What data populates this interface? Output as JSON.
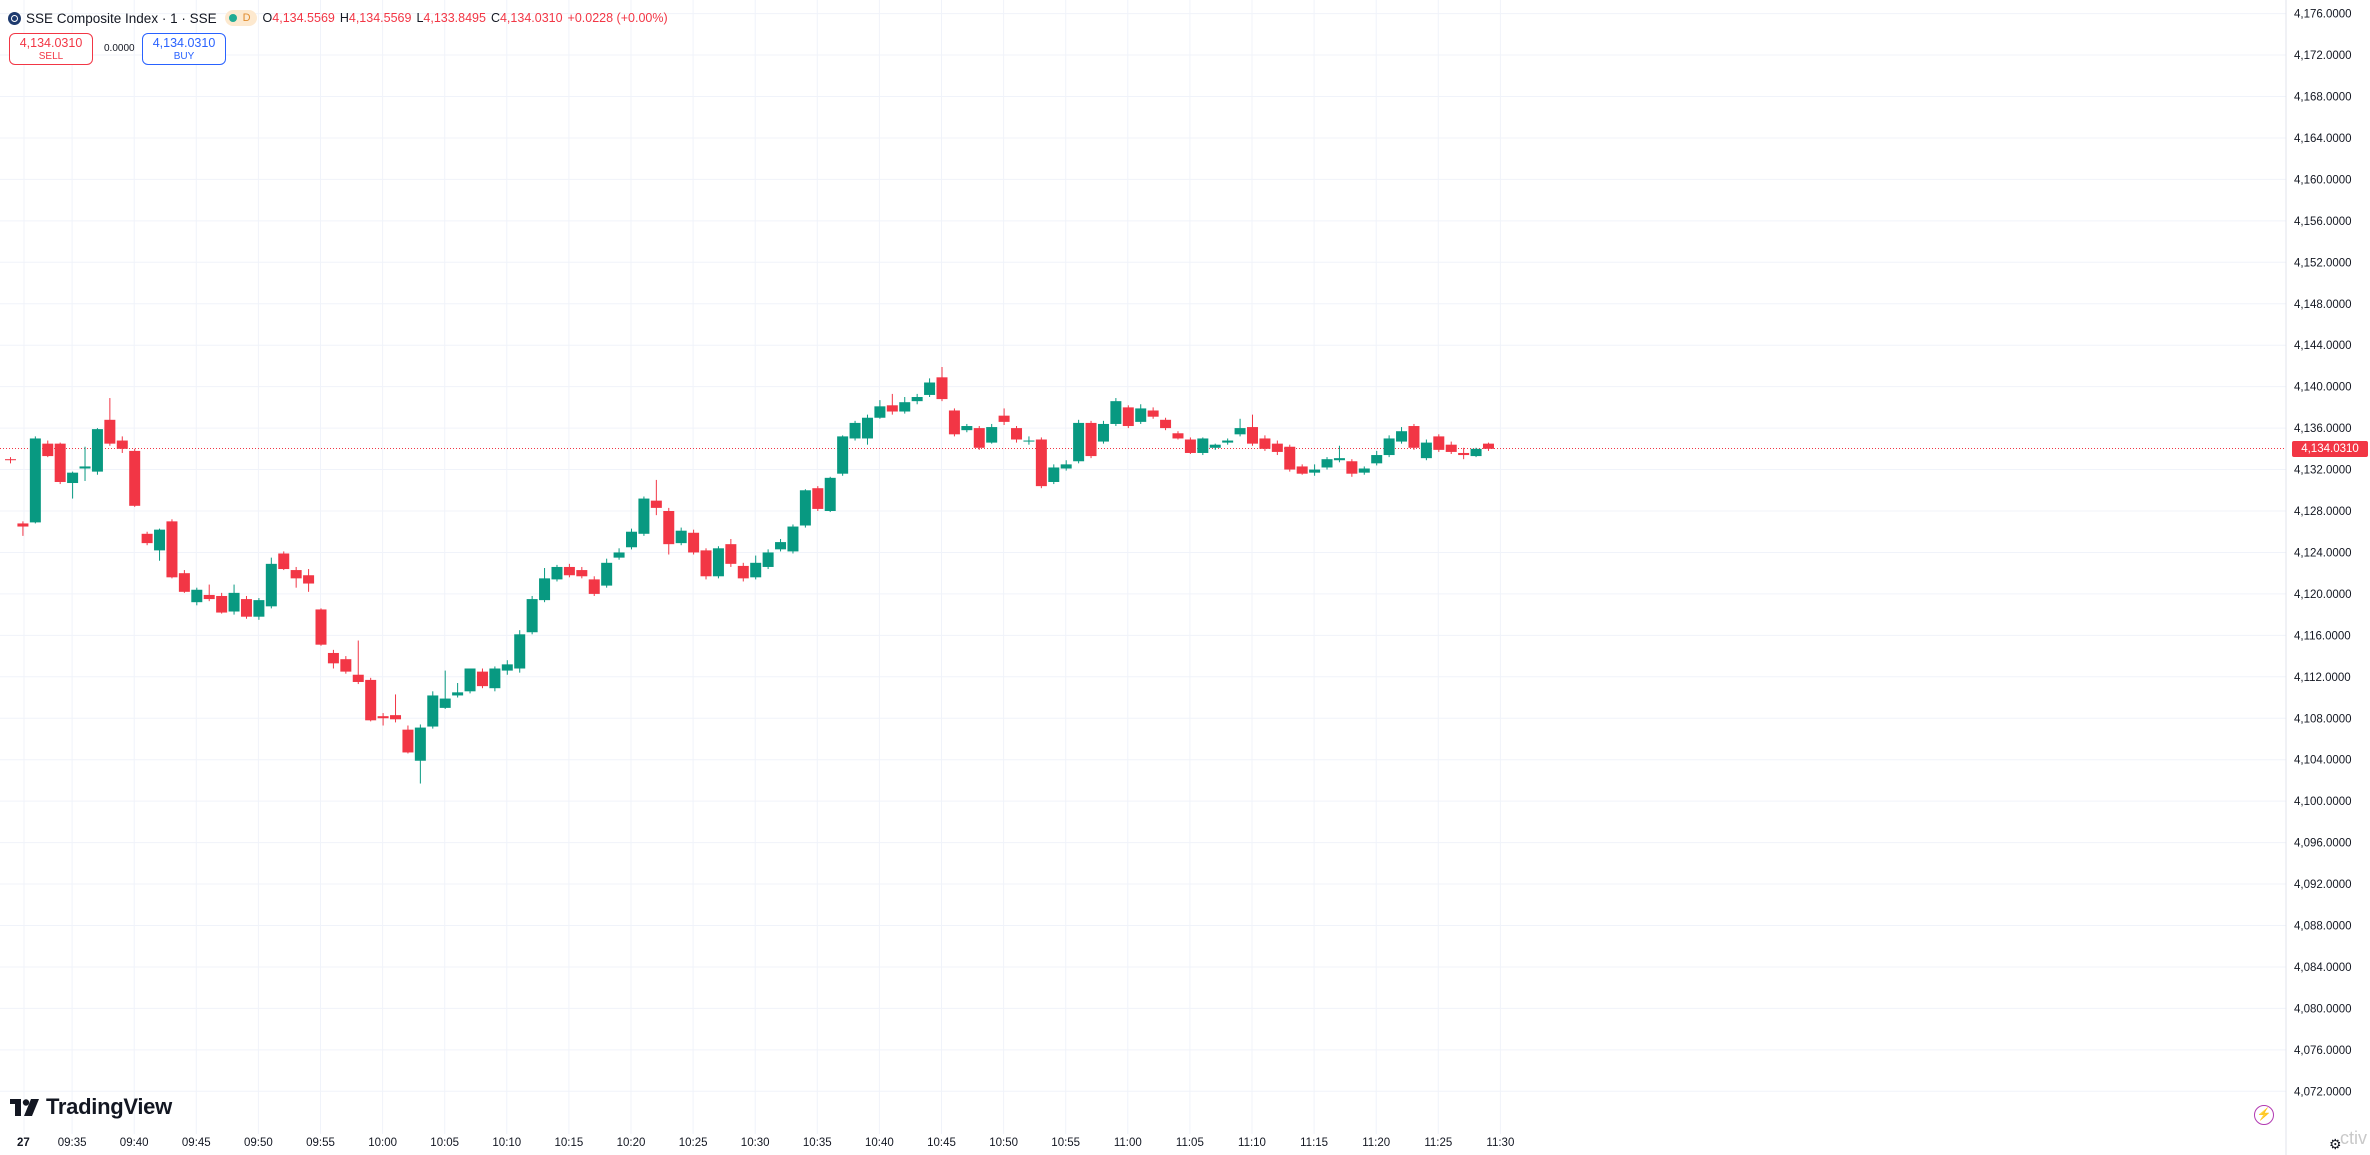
{
  "legend": {
    "title": "SSE Composite Index · 1 · SSE",
    "badge": "D",
    "o_key": "O",
    "o_val": "4,134.5569",
    "h_key": "H",
    "h_val": "4,134.5569",
    "l_key": "L",
    "l_val": "4,133.8495",
    "c_key": "C",
    "c_val": "4,134.0310",
    "change": "+0.0228 (+0.00%)"
  },
  "trade": {
    "sell_price": "4,134.0310",
    "sell_label": "SELL",
    "spread": "0.0000",
    "buy_price": "4,134.0310",
    "buy_label": "BUY"
  },
  "branding": {
    "logo_text": "TradingView"
  },
  "watermark": "ctiv",
  "last_price_label": "4,134.0310",
  "colors": {
    "up": "#089981",
    "down": "#f23645",
    "grid": "#f0f3fa",
    "axis_text": "#131722",
    "price_line": "#f23645"
  },
  "icons": {
    "symbol": "symbol-logo-icon",
    "logo": "tradingview-logo-icon",
    "bolt": "lightning-icon",
    "settings": "gear-icon"
  },
  "chart_data": {
    "type": "candlestick",
    "title": "SSE Composite Index · 1 · SSE",
    "interval": "1",
    "ylim": [
      4070,
      4177
    ],
    "y_ticks": [
      "4,072.0000",
      "4,076.0000",
      "4,080.0000",
      "4,084.0000",
      "4,088.0000",
      "4,092.0000",
      "4,096.0000",
      "4,100.0000",
      "4,104.0000",
      "4,108.0000",
      "4,112.0000",
      "4,116.0000",
      "4,120.0000",
      "4,124.0000",
      "4,128.0000",
      "4,132.0000",
      "4,136.0000",
      "4,140.0000",
      "4,144.0000",
      "4,148.0000",
      "4,152.0000",
      "4,156.0000",
      "4,160.0000",
      "4,164.0000",
      "4,168.0000",
      "4,172.0000",
      "4,176.0000"
    ],
    "x_ticks": [
      "27",
      "09:35",
      "09:40",
      "09:45",
      "09:50",
      "09:55",
      "10:00",
      "10:05",
      "10:10",
      "10:15",
      "10:20",
      "10:25",
      "10:30",
      "10:35",
      "10:40",
      "10:45",
      "10:50",
      "10:55",
      "11:00",
      "11:05",
      "11:10",
      "11:15",
      "11:20",
      "11:25",
      "11:30"
    ],
    "last_price": 4134.031,
    "candles": [
      {
        "t": "09:30",
        "o": 4133.0,
        "h": 4133.2,
        "l": 4132.6,
        "c": 4132.9
      },
      {
        "t": "09:31",
        "o": 4126.8,
        "h": 4127.0,
        "l": 4125.6,
        "c": 4126.5
      },
      {
        "t": "09:32",
        "o": 4126.9,
        "h": 4135.2,
        "l": 4126.8,
        "c": 4135.0
      },
      {
        "t": "09:33",
        "o": 4134.5,
        "h": 4134.8,
        "l": 4133.2,
        "c": 4133.3
      },
      {
        "t": "09:34",
        "o": 4134.5,
        "h": 4134.6,
        "l": 4130.6,
        "c": 4130.8
      },
      {
        "t": "09:35",
        "o": 4130.7,
        "h": 4131.8,
        "l": 4129.2,
        "c": 4131.7
      },
      {
        "t": "09:36",
        "o": 4132.1,
        "h": 4134.2,
        "l": 4130.9,
        "c": 4132.3
      },
      {
        "t": "09:37",
        "o": 4131.8,
        "h": 4136.0,
        "l": 4131.5,
        "c": 4135.9
      },
      {
        "t": "09:38",
        "o": 4136.8,
        "h": 4138.9,
        "l": 4134.3,
        "c": 4134.5
      },
      {
        "t": "09:39",
        "o": 4134.8,
        "h": 4135.2,
        "l": 4133.6,
        "c": 4134.0
      },
      {
        "t": "09:40",
        "o": 4133.8,
        "h": 4134.0,
        "l": 4128.4,
        "c": 4128.5
      },
      {
        "t": "09:41",
        "o": 4125.8,
        "h": 4126.0,
        "l": 4124.7,
        "c": 4124.9
      },
      {
        "t": "09:42",
        "o": 4124.2,
        "h": 4126.3,
        "l": 4123.2,
        "c": 4126.2
      },
      {
        "t": "09:43",
        "o": 4127.0,
        "h": 4127.2,
        "l": 4121.5,
        "c": 4121.6
      },
      {
        "t": "09:44",
        "o": 4122.0,
        "h": 4122.3,
        "l": 4120.1,
        "c": 4120.2
      },
      {
        "t": "09:45",
        "o": 4119.2,
        "h": 4120.6,
        "l": 4118.9,
        "c": 4120.4
      },
      {
        "t": "09:46",
        "o": 4119.9,
        "h": 4120.9,
        "l": 4119.3,
        "c": 4119.5
      },
      {
        "t": "09:47",
        "o": 4119.8,
        "h": 4120.1,
        "l": 4118.1,
        "c": 4118.2
      },
      {
        "t": "09:48",
        "o": 4118.3,
        "h": 4120.9,
        "l": 4118.0,
        "c": 4120.1
      },
      {
        "t": "09:49",
        "o": 4119.5,
        "h": 4119.8,
        "l": 4117.6,
        "c": 4117.8
      },
      {
        "t": "09:50",
        "o": 4117.8,
        "h": 4119.6,
        "l": 4117.5,
        "c": 4119.4
      },
      {
        "t": "09:51",
        "o": 4118.8,
        "h": 4123.5,
        "l": 4118.6,
        "c": 4122.9
      },
      {
        "t": "09:52",
        "o": 4123.9,
        "h": 4124.1,
        "l": 4122.3,
        "c": 4122.4
      },
      {
        "t": "09:53",
        "o": 4122.3,
        "h": 4122.6,
        "l": 4120.6,
        "c": 4121.5
      },
      {
        "t": "09:54",
        "o": 4121.8,
        "h": 4122.4,
        "l": 4120.2,
        "c": 4121.0
      },
      {
        "t": "09:55",
        "o": 4118.5,
        "h": 4118.6,
        "l": 4115.0,
        "c": 4115.1
      },
      {
        "t": "09:56",
        "o": 4114.3,
        "h": 4114.6,
        "l": 4112.8,
        "c": 4113.3
      },
      {
        "t": "09:57",
        "o": 4113.7,
        "h": 4114.0,
        "l": 4112.3,
        "c": 4112.5
      },
      {
        "t": "09:58",
        "o": 4112.2,
        "h": 4115.5,
        "l": 4111.3,
        "c": 4111.5
      },
      {
        "t": "09:59",
        "o": 4111.7,
        "h": 4111.9,
        "l": 4107.7,
        "c": 4107.8
      },
      {
        "t": "10:00",
        "o": 4108.2,
        "h": 4108.5,
        "l": 4107.3,
        "c": 4108.0
      },
      {
        "t": "10:01",
        "o": 4108.3,
        "h": 4110.3,
        "l": 4107.6,
        "c": 4107.9
      },
      {
        "t": "10:02",
        "o": 4106.9,
        "h": 4107.3,
        "l": 4104.6,
        "c": 4104.7
      },
      {
        "t": "10:03",
        "o": 4103.9,
        "h": 4107.4,
        "l": 4101.7,
        "c": 4107.1
      },
      {
        "t": "10:04",
        "o": 4107.2,
        "h": 4110.6,
        "l": 4107.0,
        "c": 4110.2
      },
      {
        "t": "10:05",
        "o": 4109.0,
        "h": 4112.6,
        "l": 4108.9,
        "c": 4109.9
      },
      {
        "t": "10:06",
        "o": 4110.2,
        "h": 4111.4,
        "l": 4110.0,
        "c": 4110.5
      },
      {
        "t": "10:07",
        "o": 4110.6,
        "h": 4112.8,
        "l": 4110.4,
        "c": 4112.8
      },
      {
        "t": "10:08",
        "o": 4112.5,
        "h": 4112.8,
        "l": 4110.9,
        "c": 4111.1
      },
      {
        "t": "10:09",
        "o": 4110.9,
        "h": 4113.0,
        "l": 4110.6,
        "c": 4112.8
      },
      {
        "t": "10:10",
        "o": 4112.6,
        "h": 4113.6,
        "l": 4112.2,
        "c": 4113.2
      },
      {
        "t": "10:11",
        "o": 4112.8,
        "h": 4116.5,
        "l": 4112.4,
        "c": 4116.1
      },
      {
        "t": "10:12",
        "o": 4116.3,
        "h": 4119.8,
        "l": 4116.1,
        "c": 4119.5
      },
      {
        "t": "10:13",
        "o": 4119.4,
        "h": 4122.5,
        "l": 4119.2,
        "c": 4121.5
      },
      {
        "t": "10:14",
        "o": 4121.4,
        "h": 4122.8,
        "l": 4121.2,
        "c": 4122.6
      },
      {
        "t": "10:15",
        "o": 4122.6,
        "h": 4122.9,
        "l": 4121.6,
        "c": 4121.8
      },
      {
        "t": "10:16",
        "o": 4122.3,
        "h": 4122.6,
        "l": 4121.5,
        "c": 4121.7
      },
      {
        "t": "10:17",
        "o": 4121.4,
        "h": 4121.7,
        "l": 4119.8,
        "c": 4120.0
      },
      {
        "t": "10:18",
        "o": 4120.8,
        "h": 4123.4,
        "l": 4120.6,
        "c": 4123.0
      },
      {
        "t": "10:19",
        "o": 4123.5,
        "h": 4124.4,
        "l": 4123.3,
        "c": 4124.0
      },
      {
        "t": "10:20",
        "o": 4124.5,
        "h": 4126.3,
        "l": 4124.3,
        "c": 4126.0
      },
      {
        "t": "10:21",
        "o": 4125.8,
        "h": 4129.4,
        "l": 4125.6,
        "c": 4129.2
      },
      {
        "t": "10:22",
        "o": 4129.0,
        "h": 4131.0,
        "l": 4127.6,
        "c": 4128.3
      },
      {
        "t": "10:23",
        "o": 4128.0,
        "h": 4128.3,
        "l": 4123.8,
        "c": 4124.8
      },
      {
        "t": "10:24",
        "o": 4124.9,
        "h": 4126.4,
        "l": 4124.7,
        "c": 4126.1
      },
      {
        "t": "10:25",
        "o": 4125.9,
        "h": 4126.2,
        "l": 4123.8,
        "c": 4124.0
      },
      {
        "t": "10:26",
        "o": 4124.2,
        "h": 4124.4,
        "l": 4121.4,
        "c": 4121.7
      },
      {
        "t": "10:27",
        "o": 4121.7,
        "h": 4124.6,
        "l": 4121.5,
        "c": 4124.4
      },
      {
        "t": "10:28",
        "o": 4124.8,
        "h": 4125.3,
        "l": 4122.6,
        "c": 4122.9
      },
      {
        "t": "10:29",
        "o": 4122.7,
        "h": 4123.0,
        "l": 4121.2,
        "c": 4121.5
      },
      {
        "t": "10:30",
        "o": 4121.6,
        "h": 4123.7,
        "l": 4121.4,
        "c": 4123.0
      },
      {
        "t": "10:31",
        "o": 4122.6,
        "h": 4124.3,
        "l": 4122.4,
        "c": 4124.0
      },
      {
        "t": "10:32",
        "o": 4124.3,
        "h": 4125.3,
        "l": 4124.1,
        "c": 4125.0
      },
      {
        "t": "10:33",
        "o": 4124.1,
        "h": 4126.7,
        "l": 4123.9,
        "c": 4126.5
      },
      {
        "t": "10:34",
        "o": 4126.6,
        "h": 4130.1,
        "l": 4126.4,
        "c": 4130.0
      },
      {
        "t": "10:35",
        "o": 4130.2,
        "h": 4130.4,
        "l": 4128.0,
        "c": 4128.2
      },
      {
        "t": "10:36",
        "o": 4128.0,
        "h": 4131.3,
        "l": 4127.9,
        "c": 4131.2
      },
      {
        "t": "10:37",
        "o": 4131.6,
        "h": 4135.3,
        "l": 4131.4,
        "c": 4135.2
      },
      {
        "t": "10:38",
        "o": 4135.0,
        "h": 4136.7,
        "l": 4134.8,
        "c": 4136.5
      },
      {
        "t": "10:39",
        "o": 4135.0,
        "h": 4137.3,
        "l": 4134.4,
        "c": 4137.0
      },
      {
        "t": "10:40",
        "o": 4137.0,
        "h": 4138.7,
        "l": 4136.9,
        "c": 4138.1
      },
      {
        "t": "10:41",
        "o": 4138.2,
        "h": 4139.3,
        "l": 4137.3,
        "c": 4137.6
      },
      {
        "t": "10:42",
        "o": 4137.6,
        "h": 4139.0,
        "l": 4137.4,
        "c": 4138.5
      },
      {
        "t": "10:43",
        "o": 4138.6,
        "h": 4139.3,
        "l": 4138.3,
        "c": 4139.0
      },
      {
        "t": "10:44",
        "o": 4139.2,
        "h": 4140.8,
        "l": 4139.0,
        "c": 4140.4
      },
      {
        "t": "10:45",
        "o": 4140.9,
        "h": 4141.9,
        "l": 4138.6,
        "c": 4138.8
      },
      {
        "t": "10:46",
        "o": 4137.7,
        "h": 4137.9,
        "l": 4135.2,
        "c": 4135.4
      },
      {
        "t": "10:47",
        "o": 4135.8,
        "h": 4136.4,
        "l": 4135.6,
        "c": 4136.2
      },
      {
        "t": "10:48",
        "o": 4136.0,
        "h": 4136.2,
        "l": 4133.9,
        "c": 4134.1
      },
      {
        "t": "10:49",
        "o": 4134.6,
        "h": 4136.4,
        "l": 4134.5,
        "c": 4136.1
      },
      {
        "t": "10:50",
        "o": 4137.2,
        "h": 4137.9,
        "l": 4136.3,
        "c": 4136.6
      },
      {
        "t": "10:51",
        "o": 4136.0,
        "h": 4136.2,
        "l": 4134.6,
        "c": 4134.9
      },
      {
        "t": "10:52",
        "o": 4134.7,
        "h": 4135.2,
        "l": 4134.4,
        "c": 4134.8
      },
      {
        "t": "10:53",
        "o": 4134.9,
        "h": 4135.1,
        "l": 4130.2,
        "c": 4130.4
      },
      {
        "t": "10:54",
        "o": 4130.8,
        "h": 4132.5,
        "l": 4130.6,
        "c": 4132.2
      },
      {
        "t": "10:55",
        "o": 4132.1,
        "h": 4132.9,
        "l": 4131.9,
        "c": 4132.5
      },
      {
        "t": "10:56",
        "o": 4132.8,
        "h": 4136.8,
        "l": 4132.6,
        "c": 4136.5
      },
      {
        "t": "10:57",
        "o": 4136.5,
        "h": 4136.7,
        "l": 4133.1,
        "c": 4133.3
      },
      {
        "t": "10:58",
        "o": 4134.7,
        "h": 4136.7,
        "l": 4134.5,
        "c": 4136.4
      },
      {
        "t": "10:59",
        "o": 4136.4,
        "h": 4138.9,
        "l": 4136.2,
        "c": 4138.6
      },
      {
        "t": "11:00",
        "o": 4138.0,
        "h": 4138.2,
        "l": 4136.0,
        "c": 4136.2
      },
      {
        "t": "11:01",
        "o": 4136.6,
        "h": 4138.3,
        "l": 4136.4,
        "c": 4137.9
      },
      {
        "t": "11:02",
        "o": 4137.7,
        "h": 4138.0,
        "l": 4136.9,
        "c": 4137.1
      },
      {
        "t": "11:03",
        "o": 4136.8,
        "h": 4137.0,
        "l": 4135.8,
        "c": 4136.0
      },
      {
        "t": "11:04",
        "o": 4135.5,
        "h": 4135.7,
        "l": 4134.9,
        "c": 4135.0
      },
      {
        "t": "11:05",
        "o": 4134.9,
        "h": 4135.1,
        "l": 4133.5,
        "c": 4133.6
      },
      {
        "t": "11:06",
        "o": 4133.6,
        "h": 4135.1,
        "l": 4133.4,
        "c": 4135.0
      },
      {
        "t": "11:07",
        "o": 4134.1,
        "h": 4134.5,
        "l": 4133.9,
        "c": 4134.4
      },
      {
        "t": "11:08",
        "o": 4134.6,
        "h": 4135.0,
        "l": 4134.4,
        "c": 4134.8
      },
      {
        "t": "11:09",
        "o": 4135.4,
        "h": 4136.9,
        "l": 4135.2,
        "c": 4136.0
      },
      {
        "t": "11:10",
        "o": 4136.1,
        "h": 4137.3,
        "l": 4134.3,
        "c": 4134.5
      },
      {
        "t": "11:11",
        "o": 4135.0,
        "h": 4135.3,
        "l": 4133.8,
        "c": 4134.0
      },
      {
        "t": "11:12",
        "o": 4134.5,
        "h": 4134.8,
        "l": 4133.4,
        "c": 4133.7
      },
      {
        "t": "11:13",
        "o": 4134.2,
        "h": 4134.4,
        "l": 4131.8,
        "c": 4132.0
      },
      {
        "t": "11:14",
        "o": 4132.3,
        "h": 4132.5,
        "l": 4131.5,
        "c": 4131.6
      },
      {
        "t": "11:15",
        "o": 4131.7,
        "h": 4132.5,
        "l": 4131.4,
        "c": 4132.0
      },
      {
        "t": "11:16",
        "o": 4132.2,
        "h": 4133.2,
        "l": 4132.0,
        "c": 4133.0
      },
      {
        "t": "11:17",
        "o": 4132.9,
        "h": 4134.3,
        "l": 4132.7,
        "c": 4133.1
      },
      {
        "t": "11:18",
        "o": 4132.8,
        "h": 4133.0,
        "l": 4131.3,
        "c": 4131.6
      },
      {
        "t": "11:19",
        "o": 4131.7,
        "h": 4132.3,
        "l": 4131.5,
        "c": 4132.1
      },
      {
        "t": "11:20",
        "o": 4132.6,
        "h": 4133.8,
        "l": 4132.4,
        "c": 4133.4
      },
      {
        "t": "11:21",
        "o": 4133.4,
        "h": 4135.3,
        "l": 4133.2,
        "c": 4135.0
      },
      {
        "t": "11:22",
        "o": 4134.7,
        "h": 4136.1,
        "l": 4134.5,
        "c": 4135.7
      },
      {
        "t": "11:23",
        "o": 4136.2,
        "h": 4136.4,
        "l": 4133.9,
        "c": 4134.1
      },
      {
        "t": "11:24",
        "o": 4133.1,
        "h": 4134.9,
        "l": 4132.9,
        "c": 4134.6
      },
      {
        "t": "11:25",
        "o": 4135.2,
        "h": 4135.4,
        "l": 4133.7,
        "c": 4133.9
      },
      {
        "t": "11:26",
        "o": 4134.4,
        "h": 4134.7,
        "l": 4133.5,
        "c": 4133.7
      },
      {
        "t": "11:27",
        "o": 4133.6,
        "h": 4134.1,
        "l": 4133.0,
        "c": 4133.4
      },
      {
        "t": "11:28",
        "o": 4133.3,
        "h": 4134.1,
        "l": 4133.2,
        "c": 4134.0
      },
      {
        "t": "11:29",
        "o": 4134.5,
        "h": 4134.6,
        "l": 4133.8,
        "c": 4134.0
      }
    ]
  }
}
